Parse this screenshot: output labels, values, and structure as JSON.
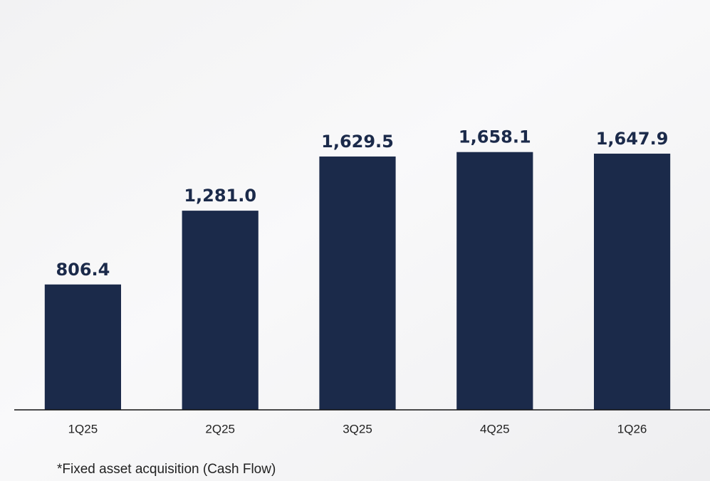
{
  "chart_data": {
    "type": "bar",
    "categories": [
      "1Q25",
      "2Q25",
      "3Q25",
      "4Q25",
      "1Q26"
    ],
    "values": [
      806.4,
      1281.0,
      1629.5,
      1658.1,
      1647.9
    ],
    "value_labels": [
      "806.4",
      "1,281.0",
      "1,629.5",
      "1,658.1",
      "1,647.9"
    ],
    "color": "#1b2a4a",
    "ylim": [
      0,
      2000
    ],
    "note": "*Fixed asset acquisition (Cash Flow)"
  }
}
